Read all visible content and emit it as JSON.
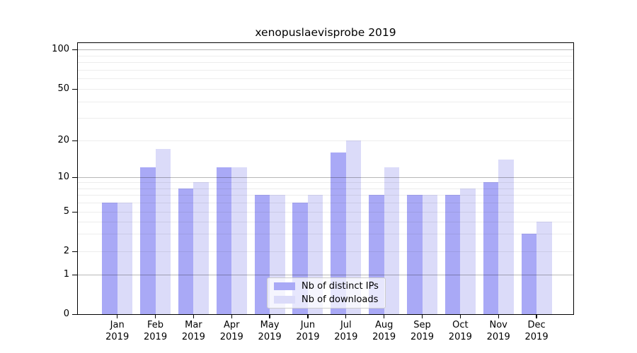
{
  "chart_data": {
    "type": "bar",
    "title": "xenopuslaevisprobe 2019",
    "categories": [
      "Jan",
      "Feb",
      "Mar",
      "Apr",
      "May",
      "Jun",
      "Jul",
      "Aug",
      "Sep",
      "Oct",
      "Nov",
      "Dec"
    ],
    "category_year": "2019",
    "series": [
      {
        "name": "Nb of distinct IPs",
        "color": "#a9a9f6",
        "values": [
          6,
          12,
          8,
          12,
          7,
          6,
          16,
          7,
          7,
          7,
          9,
          3
        ]
      },
      {
        "name": "Nb of downloads",
        "color": "#dbdbf9",
        "values": [
          6,
          17,
          9,
          12,
          7,
          7,
          20,
          12,
          7,
          8,
          14,
          4
        ]
      }
    ],
    "ylim": [
      0,
      100
    ],
    "yticks": [
      0,
      1,
      2,
      5,
      10,
      20,
      50,
      100
    ],
    "major_gridlines": [
      1,
      10,
      100
    ],
    "minor_gridlines": [
      2,
      3,
      4,
      5,
      6,
      7,
      8,
      9,
      20,
      30,
      40,
      50,
      60,
      70,
      80,
      90
    ],
    "scale": "log-like with linear 0-1 segment",
    "grid": true,
    "legend_position": "bottom-center"
  }
}
